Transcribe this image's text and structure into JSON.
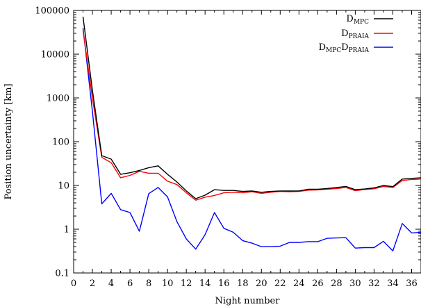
{
  "chart_data": {
    "type": "line",
    "title": "",
    "xlabel": "Night number",
    "ylabel": "Position uncertainty [km]",
    "xlim": [
      0,
      37
    ],
    "ylim": [
      0.1,
      100000
    ],
    "y_scale": "log",
    "x_ticks": [
      0,
      2,
      4,
      6,
      8,
      10,
      12,
      14,
      16,
      18,
      20,
      22,
      24,
      26,
      28,
      30,
      32,
      34,
      36
    ],
    "y_ticks": [
      0.1,
      1,
      10,
      100,
      1000,
      10000,
      100000
    ],
    "y_tick_labels": [
      "0.1",
      "1",
      "10",
      "100",
      "1000",
      "10000",
      "100000"
    ],
    "grid": false,
    "legend_position": "top-right",
    "x": [
      1,
      2,
      3,
      4,
      5,
      6,
      7,
      8,
      9,
      10,
      11,
      12,
      13,
      14,
      15,
      16,
      17,
      18,
      19,
      20,
      21,
      22,
      23,
      24,
      25,
      26,
      27,
      28,
      29,
      30,
      31,
      32,
      33,
      34,
      35,
      36,
      37
    ],
    "series": [
      {
        "name": "D_MPC",
        "legend_main": "D",
        "legend_sub": "MPC",
        "color": "#000000",
        "values": [
          72000,
          1500,
          48,
          40,
          18,
          19.5,
          22,
          25.5,
          28,
          18,
          12,
          7.5,
          5,
          6,
          8,
          7.7,
          7.7,
          7.3,
          7.5,
          7.0,
          7.3,
          7.5,
          7.5,
          7.5,
          8.2,
          8.2,
          8.5,
          9,
          9.5,
          8,
          8.3,
          8.8,
          10,
          9.4,
          14,
          14.5,
          15
        ]
      },
      {
        "name": "D_PRAIA",
        "legend_main": "D",
        "legend_sub": "PRAIA",
        "color": "#ff0000",
        "values": [
          35000,
          1000,
          44,
          33,
          15,
          17,
          21,
          19,
          19,
          12.5,
          10.5,
          6.8,
          4.6,
          5.4,
          5.9,
          6.8,
          7,
          6.8,
          7.2,
          6.6,
          7.0,
          7.3,
          7.2,
          7.3,
          7.8,
          7.9,
          8.2,
          8.5,
          9,
          7.6,
          8.1,
          8.4,
          9.5,
          9,
          13,
          13.7,
          14
        ]
      },
      {
        "name": "D_MPC - D_PRAIA",
        "legend_parts": [
          "D",
          "MPC",
          "D",
          "PRAIA"
        ],
        "color": "#0000ff",
        "values": [
          40000,
          500,
          3.8,
          6.6,
          2.8,
          2.4,
          0.9,
          6.5,
          9,
          5.5,
          1.5,
          0.6,
          0.35,
          0.75,
          2.4,
          1.05,
          0.85,
          0.55,
          0.48,
          0.4,
          0.4,
          0.41,
          0.5,
          0.5,
          0.52,
          0.52,
          0.62,
          0.63,
          0.64,
          0.37,
          0.38,
          0.38,
          0.53,
          0.32,
          1.35,
          0.82,
          0.85
        ]
      }
    ]
  }
}
